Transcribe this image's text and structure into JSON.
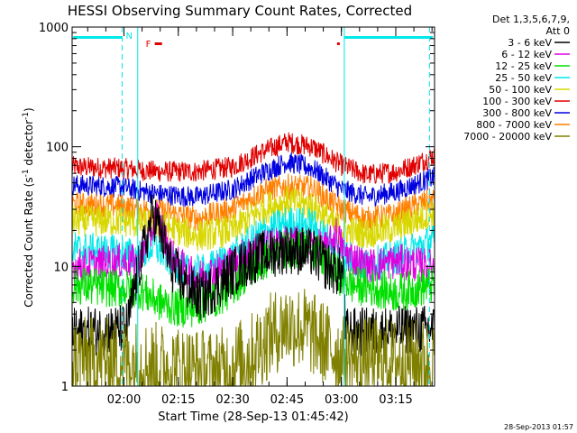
{
  "chart_data": {
    "type": "line",
    "title": "HESSI Observing Summary Count Rates, Corrected",
    "xlabel": "Start Time (28-Sep-13 01:45:42)",
    "ylabel_parts": {
      "main": "Corrected Count Rate (s",
      "sup1": "-1",
      "mid": " detector",
      "sup2": "-1",
      "end": ")"
    },
    "yscale": "log",
    "ylim": [
      1,
      1000
    ],
    "xlim_minutes": [
      105.7,
      205.7
    ],
    "x_ticks": [
      {
        "minute": 120,
        "label": "02:00"
      },
      {
        "minute": 135,
        "label": "02:15"
      },
      {
        "minute": 150,
        "label": "02:30"
      },
      {
        "minute": 165,
        "label": "02:45"
      },
      {
        "minute": 180,
        "label": "03:00"
      },
      {
        "minute": 195,
        "label": "03:15"
      }
    ],
    "y_ticks": [
      {
        "value": 1,
        "label": "1"
      },
      {
        "value": 10,
        "label": "10"
      },
      {
        "value": 100,
        "label": "100"
      },
      {
        "value": 1000,
        "label": "1000"
      }
    ],
    "legend": {
      "position": "right",
      "header": [
        "Det 1,3,5,6,7,9,",
        "Att 0"
      ],
      "entries": [
        {
          "label": "3 - 6 keV",
          "color": "#000000"
        },
        {
          "label": "6 - 12 keV",
          "color": "#e000e0"
        },
        {
          "label": "12 - 25 keV",
          "color": "#00e000"
        },
        {
          "label": "25 - 50 keV",
          "color": "#00e8e8"
        },
        {
          "label": "50 - 100 keV",
          "color": "#d8d800"
        },
        {
          "label": "100 - 300 keV",
          "color": "#e00000"
        },
        {
          "label": "300 - 800 keV",
          "color": "#0000e0"
        },
        {
          "label": "800 - 7000 keV",
          "color": "#ff8000"
        },
        {
          "label": "7000 - 20000 keV",
          "color": "#808000"
        }
      ]
    },
    "flags": {
      "night_label": "N",
      "flare_label": "F",
      "night_bars": [
        [
          106,
          119.5
        ],
        [
          180.8,
          205.2
        ]
      ],
      "flare_bars": [
        [
          128.5,
          130.5
        ],
        [
          178.8,
          179.4
        ]
      ]
    },
    "vlines_solid": [
      123.8,
      180.8
    ],
    "vlines_dashed": [
      119.5,
      204.3
    ],
    "series": [
      {
        "color": "#e00000",
        "noise": 0.03,
        "points": [
          [
            105.7,
            68
          ],
          [
            119.5,
            66
          ],
          [
            123.8,
            64
          ],
          [
            130,
            62
          ],
          [
            140,
            62
          ],
          [
            150,
            68
          ],
          [
            158,
            90
          ],
          [
            165,
            110
          ],
          [
            172,
            100
          ],
          [
            180,
            70
          ],
          [
            187,
            58
          ],
          [
            195,
            62
          ],
          [
            200,
            70
          ],
          [
            205,
            83
          ]
        ]
      },
      {
        "color": "#0000e0",
        "noise": 0.03,
        "points": [
          [
            105.7,
            48
          ],
          [
            119.5,
            46
          ],
          [
            123.8,
            43
          ],
          [
            130,
            40
          ],
          [
            140,
            38
          ],
          [
            150,
            44
          ],
          [
            158,
            60
          ],
          [
            165,
            75
          ],
          [
            172,
            66
          ],
          [
            180,
            44
          ],
          [
            187,
            38
          ],
          [
            195,
            42
          ],
          [
            200,
            48
          ],
          [
            205,
            55
          ]
        ]
      },
      {
        "color": "#ff8000",
        "noise": 0.035,
        "points": [
          [
            105.7,
            33
          ],
          [
            119.5,
            32
          ],
          [
            123.8,
            30
          ],
          [
            130,
            29
          ],
          [
            140,
            25
          ],
          [
            150,
            30
          ],
          [
            158,
            42
          ],
          [
            165,
            47
          ],
          [
            172,
            45
          ],
          [
            180,
            30
          ],
          [
            187,
            25
          ],
          [
            195,
            27
          ],
          [
            200,
            32
          ],
          [
            205,
            36
          ]
        ]
      },
      {
        "color": "#d8d800",
        "noise": 0.045,
        "points": [
          [
            105.7,
            24
          ],
          [
            119.5,
            24
          ],
          [
            123.8,
            23
          ],
          [
            130,
            22
          ],
          [
            140,
            18
          ],
          [
            150,
            20
          ],
          [
            158,
            30
          ],
          [
            165,
            35
          ],
          [
            172,
            32
          ],
          [
            180,
            20
          ],
          [
            187,
            19
          ],
          [
            195,
            21
          ],
          [
            200,
            24
          ],
          [
            205,
            28
          ]
        ]
      },
      {
        "color": "#00e8e8",
        "noise": 0.05,
        "points": [
          [
            105.7,
            14
          ],
          [
            119.5,
            13
          ],
          [
            123.8,
            12
          ],
          [
            128,
            15
          ],
          [
            132,
            12
          ],
          [
            137,
            9
          ],
          [
            142,
            9
          ],
          [
            150,
            12
          ],
          [
            158,
            19
          ],
          [
            165,
            23
          ],
          [
            172,
            22
          ],
          [
            180,
            13
          ],
          [
            187,
            10
          ],
          [
            195,
            12
          ],
          [
            200,
            14
          ],
          [
            205,
            16
          ]
        ]
      },
      {
        "color": "#e000e0",
        "noise": 0.05,
        "points": [
          [
            105.7,
            10
          ],
          [
            119.5,
            11
          ],
          [
            123.8,
            11
          ],
          [
            127,
            17
          ],
          [
            129,
            27
          ],
          [
            131,
            18
          ],
          [
            134,
            11
          ],
          [
            140,
            8
          ],
          [
            148,
            10
          ],
          [
            156,
            14
          ],
          [
            165,
            16
          ],
          [
            172,
            15
          ],
          [
            176,
            14
          ],
          [
            178.5,
            19
          ],
          [
            181,
            13
          ],
          [
            187,
            10
          ],
          [
            195,
            11
          ],
          [
            205,
            10
          ]
        ]
      },
      {
        "color": "#00e000",
        "noise": 0.055,
        "points": [
          [
            105.7,
            7
          ],
          [
            119.5,
            6.5
          ],
          [
            123.8,
            6.5
          ],
          [
            130,
            5
          ],
          [
            135,
            4.5
          ],
          [
            140,
            4.5
          ],
          [
            148,
            6
          ],
          [
            156,
            10
          ],
          [
            165,
            14
          ],
          [
            172,
            14
          ],
          [
            178,
            9
          ],
          [
            183,
            7
          ],
          [
            190,
            6.5
          ],
          [
            195,
            6
          ],
          [
            205,
            7
          ]
        ]
      },
      {
        "color": "#000000",
        "noise": 0.07,
        "points": [
          [
            105.7,
            2.8
          ],
          [
            119.5,
            3.0
          ],
          [
            121,
            3.2
          ],
          [
            123.8,
            9
          ],
          [
            126,
            16
          ],
          [
            128,
            28
          ],
          [
            130,
            20
          ],
          [
            133,
            10
          ],
          [
            137,
            7
          ],
          [
            141,
            5.5
          ],
          [
            146,
            7
          ],
          [
            152,
            10
          ],
          [
            157,
            12
          ],
          [
            165,
            14
          ],
          [
            172,
            13
          ],
          [
            176,
            10
          ],
          [
            179,
            9
          ],
          [
            180.8,
            9
          ],
          [
            181,
            2.8
          ],
          [
            205.7,
            3.0
          ]
        ]
      },
      {
        "color": "#808000",
        "noise": 0.12,
        "points": [
          [
            105.7,
            1.7
          ],
          [
            123.8,
            1.6
          ],
          [
            145,
            1.3
          ],
          [
            150,
            1.5
          ],
          [
            155,
            1.8
          ],
          [
            160,
            2.6
          ],
          [
            165,
            3.3
          ],
          [
            170,
            3.0
          ],
          [
            175,
            2.3
          ],
          [
            180.8,
            1.7
          ],
          [
            205.7,
            1.6
          ]
        ]
      }
    ]
  },
  "footer": {
    "timestamp": "28-Sep-2013 01:57"
  }
}
